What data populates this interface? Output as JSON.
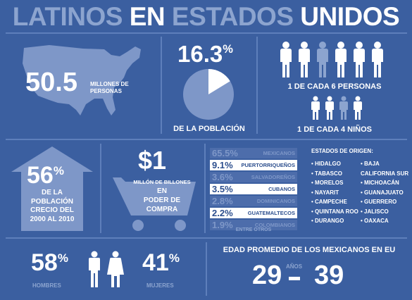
{
  "title": {
    "part1": "LATINOS ",
    "part2": "EN ",
    "part3": "ESTADOS ",
    "part4": "UNIDOS"
  },
  "population": {
    "value": "50.5",
    "unit_line1": "MILLONES DE",
    "unit_line2": "PERSONAS"
  },
  "share": {
    "value": "16.3",
    "percent_sign": "%",
    "caption": "DE LA POBLACIÓN",
    "fraction": 0.163
  },
  "ratio": {
    "people": "1 DE CADA 6 PERSONAS",
    "children": "1 DE CADA 4 NIÑOS"
  },
  "growth": {
    "value": "56",
    "percent_sign": "%",
    "line1": "DE LA",
    "line2": "POBLACIÓN",
    "line3": "CRECIO DEL",
    "line4": "2000 AL 2010"
  },
  "power": {
    "value": "$1",
    "line1": "MILLÓN DE BILLONES",
    "line2": "EN",
    "line3": "PODER DE",
    "line4": "COMPRA"
  },
  "origin_stats": [
    {
      "pct": "65.5%",
      "name": "MEXICANOS",
      "highlight": false
    },
    {
      "pct": "9.1%",
      "name": "PUERTORRIQUEÑOS",
      "highlight": true
    },
    {
      "pct": "3.6%",
      "name": "SALVADOREÑOS",
      "highlight": false
    },
    {
      "pct": "3.5%",
      "name": "CUBANOS",
      "highlight": true
    },
    {
      "pct": "2.8%",
      "name": "DOMINICANOS",
      "highlight": false
    },
    {
      "pct": "2.2%",
      "name": "GUATEMALTECOS",
      "highlight": true
    },
    {
      "pct": "1.9%",
      "name": "COLOMBIANOS",
      "highlight": false
    }
  ],
  "others_label": "ENTRE OTROS",
  "states": {
    "heading": "ESTADOS DE ORIGEN:",
    "col1": [
      "• HIDALGO",
      "• TABASCO",
      "• MORELOS",
      "• NAYARIT",
      "• CAMPECHE",
      "• QUINTANA ROO",
      "• DURANGO"
    ],
    "col2": [
      "• BAJA",
      "CALIFORNIA SUR",
      "• MICHOACÁN",
      "• GUANAJUATO",
      "• GUERRERO",
      "• JALISCO",
      "• OAXACA"
    ]
  },
  "gender": {
    "men_value": "58",
    "men_label": "HOMBRES",
    "women_value": "41",
    "women_label": "MUJERES",
    "percent_sign": "%"
  },
  "age": {
    "heading": "EDAD PROMEDIO DE LOS MEXICANOS EN EU",
    "from": "29",
    "unit": "AÑOS",
    "to": "39"
  },
  "colors": {
    "background": "#3b5fa0",
    "muted": "#8ca4cf",
    "divider": "#5e7fbb",
    "highlight_text": "#2d4f8e"
  }
}
